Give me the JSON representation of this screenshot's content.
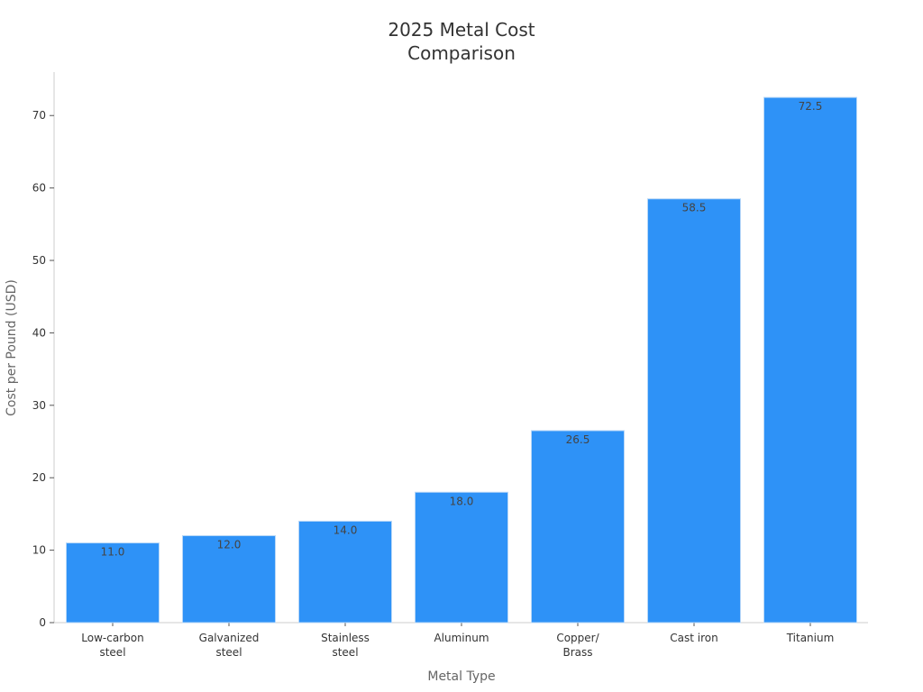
{
  "chart_data": {
    "type": "bar",
    "title_lines": [
      "2025 Metal Cost",
      "Comparison"
    ],
    "xlabel": "Metal Type",
    "ylabel": "Cost per Pound (USD)",
    "categories": [
      [
        "Low-carbon",
        "steel"
      ],
      [
        "Galvanized",
        "steel"
      ],
      [
        "Stainless",
        "steel"
      ],
      [
        "Aluminum"
      ],
      [
        "Copper/",
        "Brass"
      ],
      [
        "Cast iron"
      ],
      [
        "Titanium"
      ]
    ],
    "values": [
      11.0,
      12.0,
      14.0,
      18.0,
      26.5,
      58.5,
      72.5
    ],
    "data_labels": [
      "11.0",
      "12.0",
      "14.0",
      "18.0",
      "26.5",
      "58.5",
      "72.5"
    ],
    "yticks": [
      "0",
      "10",
      "20",
      "30",
      "40",
      "50",
      "60",
      "70"
    ],
    "ylim": [
      0,
      76
    ],
    "grid": false,
    "colors": {
      "bar": "#2e92f7",
      "bar_edge": "#b7d7f7",
      "axis": "#cccccc"
    }
  }
}
